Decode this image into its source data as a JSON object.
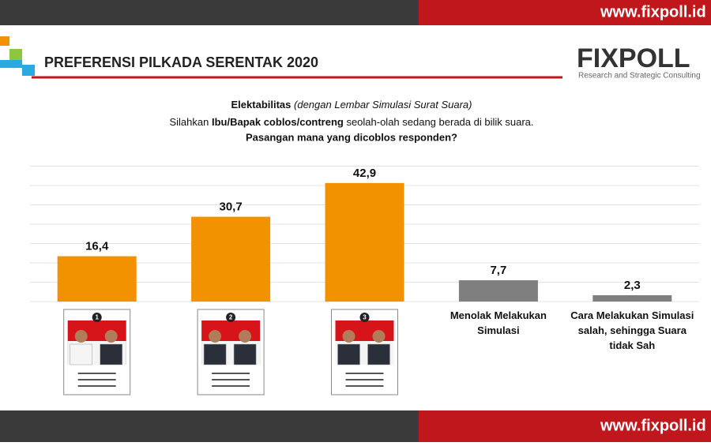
{
  "header": {
    "title": "PREFERENSI PILKADA SERENTAK 2020",
    "logo": "FIXPOLL",
    "tagline": "Research and Strategic Consulting",
    "url_top": "www.fixpoll.id",
    "url_bottom": "www.fixpoll.id"
  },
  "chart_data": {
    "type": "bar",
    "title": "Elektabilitas",
    "title_note": "(dengan Lembar Simulasi Surat Suara)",
    "subtitle": [
      "Silahkan ",
      "Ibu/Bapak coblos/contreng",
      " seolah-olah sedang berada di bilik suara. ",
      "Pasangan mana yang dicoblos responden?"
    ],
    "categories": [
      null,
      null,
      null,
      "Menolak Melakukan Simulasi",
      "Cara Melakukan Simulasi salah, sehingga Suara tidak Sah"
    ],
    "ballot_numbers": [
      "1",
      "2",
      "3"
    ],
    "values": [
      16.4,
      30.7,
      42.9,
      7.7,
      2.3
    ],
    "value_labels": [
      "16,4",
      "30,7",
      "42,9",
      "7,7",
      "2,3"
    ],
    "colors": [
      "#f39200",
      "#f39200",
      "#f39200",
      "#7f7f7f",
      "#7f7f7f"
    ],
    "ylim": [
      0,
      50
    ],
    "yticks": [
      0,
      7,
      14,
      21,
      28,
      35,
      42,
      49
    ],
    "grid": true
  }
}
